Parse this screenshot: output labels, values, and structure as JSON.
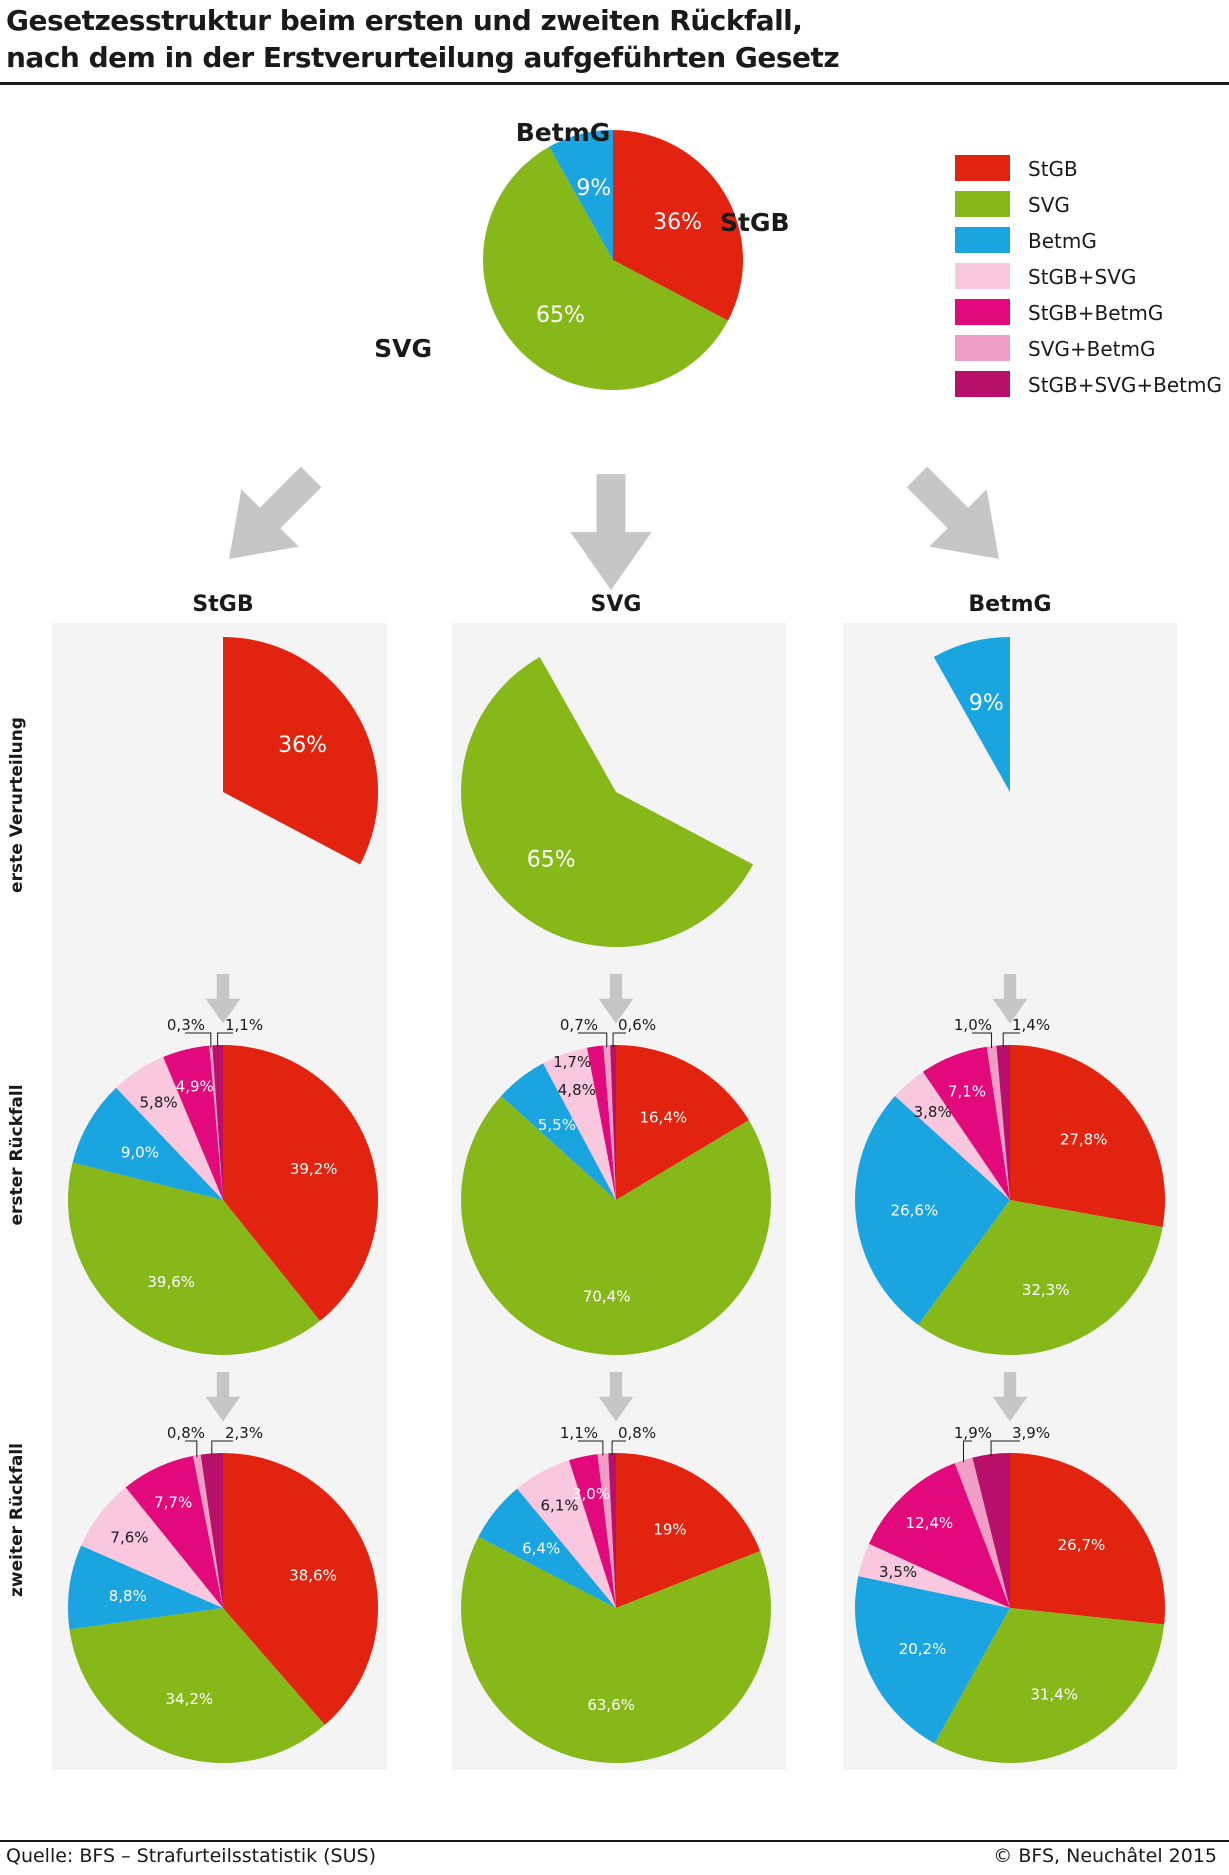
{
  "title": {
    "line1": "Gesetzesstruktur beim ersten und zweiten Rückfall,",
    "line2": "nach dem in der Erstverurteilung aufgeführten Gesetz"
  },
  "footer": {
    "source": "Quelle: BFS – Strafurteilsstatistik (SUS)",
    "copyright": "© BFS, Neuchâtel 2015"
  },
  "colors": {
    "StGB": "#e2230f",
    "SVG": "#86b81a",
    "BetmG": "#1aa4e0",
    "StGB+SVG": "#f9c8de",
    "StGB+BetmG": "#e2097c",
    "SVG+BetmG": "#f09ec5",
    "StGB+SVG+BetmG": "#b80f6a",
    "panel": "#f4f4f4",
    "arrow": "#c6c6c6"
  },
  "legend": [
    "StGB",
    "SVG",
    "BetmG",
    "StGB+SVG",
    "StGB+BetmG",
    "SVG+BetmG",
    "StGB+SVG+BetmG"
  ],
  "row_labels": [
    "erste Verurteilung",
    "erster Rückfall",
    "zweiter Rückfall"
  ],
  "chart_data": [
    {
      "type": "pie",
      "chart": "Erstverurteilung",
      "slice_labels": [
        "StGB",
        "SVG",
        "BetmG"
      ],
      "categories": [
        "StGB",
        "SVG",
        "BetmG"
      ],
      "values": [
        36,
        65,
        9
      ],
      "value_labels": [
        "36%",
        "65%",
        "9%"
      ]
    },
    {
      "type": "pie",
      "column": "StGB",
      "first_conviction": {
        "value": 36,
        "label": "36%"
      },
      "first_relapse": {
        "categories": [
          "StGB",
          "SVG",
          "BetmG",
          "StGB+SVG",
          "StGB+BetmG",
          "SVG+BetmG",
          "StGB+SVG+BetmG"
        ],
        "values": [
          39.2,
          39.6,
          9.0,
          5.8,
          4.9,
          0.3,
          1.1
        ],
        "labels": [
          "39,2%",
          "39,6%",
          "9,0%",
          "5,8%",
          "4,9%",
          "0,3%",
          "1,1%"
        ]
      },
      "second_relapse": {
        "categories": [
          "StGB",
          "SVG",
          "BetmG",
          "StGB+SVG",
          "StGB+BetmG",
          "SVG+BetmG",
          "StGB+SVG+BetmG"
        ],
        "values": [
          38.6,
          34.2,
          8.8,
          7.6,
          7.7,
          0.8,
          2.3
        ],
        "labels": [
          "38,6%",
          "34,2%",
          "8,8%",
          "7,6%",
          "7,7%",
          "0,8%",
          "2,3%"
        ]
      }
    },
    {
      "type": "pie",
      "column": "SVG",
      "first_conviction": {
        "value": 65,
        "label": "65%"
      },
      "first_relapse": {
        "categories": [
          "StGB",
          "SVG",
          "BetmG",
          "StGB+SVG",
          "StGB+BetmG",
          "SVG+BetmG",
          "StGB+SVG+BetmG"
        ],
        "values": [
          16.4,
          70.4,
          5.5,
          4.8,
          1.7,
          0.7,
          0.6
        ],
        "labels": [
          "16,4%",
          "70,4%",
          "5,5%",
          "4,8%",
          "1,7%",
          "0,7%",
          "0,6%"
        ]
      },
      "second_relapse": {
        "categories": [
          "StGB",
          "SVG",
          "BetmG",
          "StGB+SVG",
          "StGB+BetmG",
          "SVG+BetmG",
          "StGB+SVG+BetmG"
        ],
        "values": [
          19,
          63.6,
          6.4,
          6.1,
          3.0,
          1.1,
          0.8
        ],
        "labels": [
          "19%",
          "63,6%",
          "6,4%",
          "6,1%",
          "3,0%",
          "1,1%",
          "0,8%"
        ]
      }
    },
    {
      "type": "pie",
      "column": "BetmG",
      "first_conviction": {
        "value": 9,
        "label": "9%"
      },
      "first_relapse": {
        "categories": [
          "StGB",
          "SVG",
          "BetmG",
          "StGB+SVG",
          "StGB+BetmG",
          "SVG+BetmG",
          "StGB+SVG+BetmG"
        ],
        "values": [
          27.8,
          32.3,
          26.6,
          3.8,
          7.1,
          1.0,
          1.4
        ],
        "labels": [
          "27,8%",
          "32,3%",
          "26,6%",
          "3,8%",
          "7,1%",
          "1,0%",
          "1,4%"
        ]
      },
      "second_relapse": {
        "categories": [
          "StGB",
          "SVG",
          "BetmG",
          "StGB+SVG",
          "StGB+BetmG",
          "SVG+BetmG",
          "StGB+SVG+BetmG"
        ],
        "values": [
          26.7,
          31.4,
          20.2,
          3.5,
          12.4,
          1.9,
          3.9
        ],
        "labels": [
          "26,7%",
          "31,4%",
          "20,2%",
          "3,5%",
          "12,4%",
          "1,9%",
          "3,9%"
        ]
      }
    }
  ]
}
